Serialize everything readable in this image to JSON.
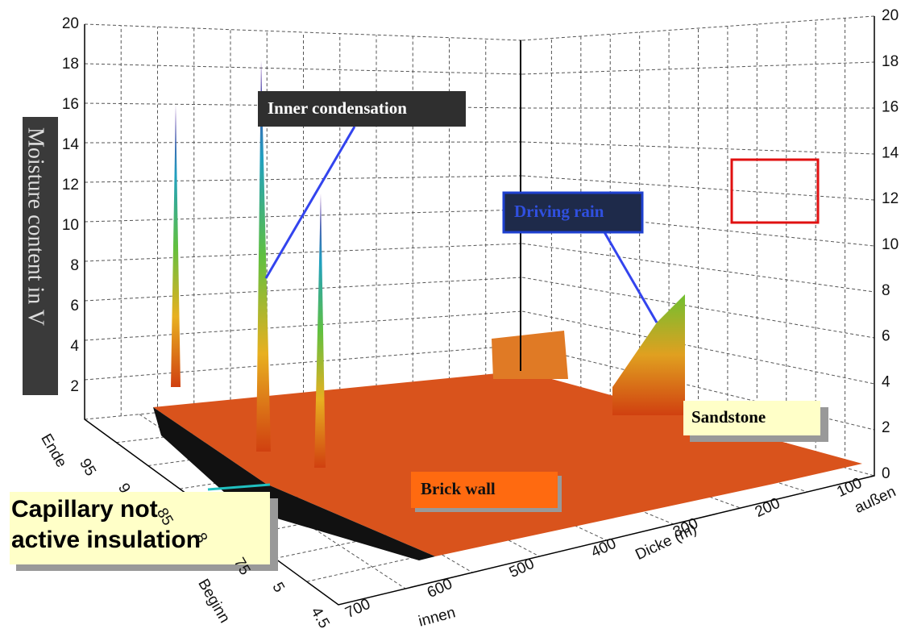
{
  "left_axis": {
    "ticks": [
      "20",
      "18",
      "16",
      "14",
      "12",
      "10",
      "8",
      "6",
      "4",
      "2"
    ],
    "label": "Moisture content in V"
  },
  "right_axis": {
    "ticks": [
      "20",
      "18",
      "16",
      "14",
      "12",
      "10",
      "8",
      "6",
      "4",
      "2",
      "0"
    ]
  },
  "depth_axis": {
    "ticks": [
      "700",
      "600",
      "500",
      "400",
      "300",
      "200",
      "100"
    ],
    "label": "Dicke (m)",
    "inner": "innen",
    "outer": "außen"
  },
  "time_axis": {
    "ticks": [
      "Ende",
      "95",
      "9",
      "85",
      "8",
      "75",
      "5",
      "4.5"
    ],
    "label": "Beginn"
  },
  "annotations": {
    "inner_condensation": "Inner condensation",
    "driving_rain": "Driving rain",
    "sandstone": "Sandstone",
    "brick_wall": "Brick wall",
    "insulation": [
      "Capillary not",
      "active insulation"
    ]
  }
}
